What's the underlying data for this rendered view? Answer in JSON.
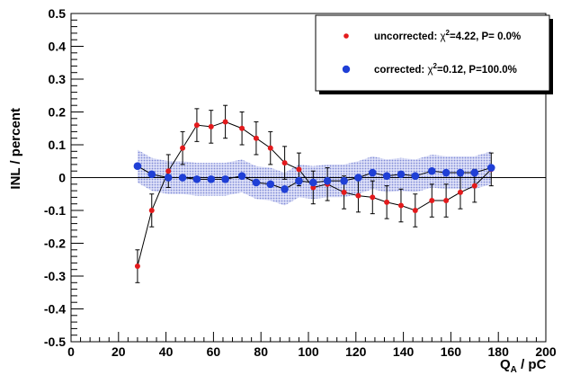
{
  "chart_data": {
    "type": "scatter",
    "xlabel": "Q_A / pC",
    "ylabel": "INL / percent",
    "xlim": [
      0,
      200
    ],
    "ylim": [
      -0.5,
      0.5
    ],
    "x_ticks": [
      0,
      20,
      40,
      60,
      80,
      100,
      120,
      140,
      160,
      180,
      200
    ],
    "y_ticks": [
      -0.5,
      -0.4,
      -0.3,
      -0.2,
      -0.1,
      0,
      0.1,
      0.2,
      0.3,
      0.4,
      0.5
    ],
    "zero_line": true,
    "grid": false,
    "legend_position": "top-right",
    "series": [
      {
        "name": "uncorrected: χ²=4.22, P= 0.0%",
        "color": "#e31a1c",
        "marker": "small-dot",
        "connected": true,
        "error_bars": true,
        "points": [
          {
            "x": 28,
            "y": -0.27,
            "err": 0.05
          },
          {
            "x": 34,
            "y": -0.1,
            "err": 0.05
          },
          {
            "x": 41,
            "y": 0.02,
            "err": 0.05
          },
          {
            "x": 47,
            "y": 0.09,
            "err": 0.05
          },
          {
            "x": 53,
            "y": 0.16,
            "err": 0.05
          },
          {
            "x": 59,
            "y": 0.155,
            "err": 0.05
          },
          {
            "x": 65,
            "y": 0.17,
            "err": 0.05
          },
          {
            "x": 72,
            "y": 0.15,
            "err": 0.05
          },
          {
            "x": 78,
            "y": 0.12,
            "err": 0.05
          },
          {
            "x": 84,
            "y": 0.09,
            "err": 0.05
          },
          {
            "x": 90,
            "y": 0.045,
            "err": 0.05
          },
          {
            "x": 96,
            "y": 0.025,
            "err": 0.05
          },
          {
            "x": 102,
            "y": -0.03,
            "err": 0.05
          },
          {
            "x": 108,
            "y": -0.02,
            "err": 0.05
          },
          {
            "x": 115,
            "y": -0.045,
            "err": 0.05
          },
          {
            "x": 121,
            "y": -0.055,
            "err": 0.05
          },
          {
            "x": 127,
            "y": -0.06,
            "err": 0.05
          },
          {
            "x": 133,
            "y": -0.075,
            "err": 0.05
          },
          {
            "x": 139,
            "y": -0.085,
            "err": 0.05
          },
          {
            "x": 145,
            "y": -0.1,
            "err": 0.05
          },
          {
            "x": 152,
            "y": -0.07,
            "err": 0.05
          },
          {
            "x": 158,
            "y": -0.07,
            "err": 0.05
          },
          {
            "x": 164,
            "y": -0.045,
            "err": 0.05
          },
          {
            "x": 170,
            "y": -0.025,
            "err": 0.05
          },
          {
            "x": 177,
            "y": 0.025,
            "err": 0.05
          }
        ]
      },
      {
        "name": "corrected: χ²=0.12, P=100.0%",
        "color": "#1f3fd6",
        "band_color": "#b8bff0",
        "marker": "large-dot",
        "connected": true,
        "error_band": true,
        "points": [
          {
            "x": 28,
            "y": 0.035,
            "err": 0.05
          },
          {
            "x": 34,
            "y": 0.01,
            "err": 0.05
          },
          {
            "x": 41,
            "y": 0.0,
            "err": 0.05
          },
          {
            "x": 47,
            "y": 0.0,
            "err": 0.05
          },
          {
            "x": 53,
            "y": -0.005,
            "err": 0.05
          },
          {
            "x": 59,
            "y": -0.005,
            "err": 0.05
          },
          {
            "x": 65,
            "y": -0.005,
            "err": 0.05
          },
          {
            "x": 72,
            "y": 0.005,
            "err": 0.05
          },
          {
            "x": 78,
            "y": -0.015,
            "err": 0.05
          },
          {
            "x": 84,
            "y": -0.02,
            "err": 0.05
          },
          {
            "x": 90,
            "y": -0.035,
            "err": 0.05
          },
          {
            "x": 96,
            "y": -0.01,
            "err": 0.05
          },
          {
            "x": 102,
            "y": -0.015,
            "err": 0.05
          },
          {
            "x": 108,
            "y": -0.01,
            "err": 0.05
          },
          {
            "x": 115,
            "y": -0.01,
            "err": 0.05
          },
          {
            "x": 121,
            "y": 0.0,
            "err": 0.05
          },
          {
            "x": 127,
            "y": 0.015,
            "err": 0.05
          },
          {
            "x": 133,
            "y": 0.005,
            "err": 0.05
          },
          {
            "x": 139,
            "y": 0.01,
            "err": 0.05
          },
          {
            "x": 145,
            "y": 0.005,
            "err": 0.05
          },
          {
            "x": 152,
            "y": 0.02,
            "err": 0.05
          },
          {
            "x": 158,
            "y": 0.015,
            "err": 0.05
          },
          {
            "x": 164,
            "y": 0.015,
            "err": 0.05
          },
          {
            "x": 170,
            "y": 0.015,
            "err": 0.05
          },
          {
            "x": 177,
            "y": 0.03,
            "err": 0.05
          }
        ]
      }
    ],
    "legend": {
      "entries": [
        {
          "prefix": "uncorrected: ",
          "chi": "χ",
          "sup": "2",
          "suffix": "=4.22, P= 0.0%"
        },
        {
          "prefix": "corrected: ",
          "chi": "χ",
          "sup": "2",
          "suffix": "=0.12, P=100.0%"
        }
      ]
    },
    "xlabel_parts": {
      "main": "Q",
      "sub": "A",
      "rest": " / pC"
    }
  }
}
